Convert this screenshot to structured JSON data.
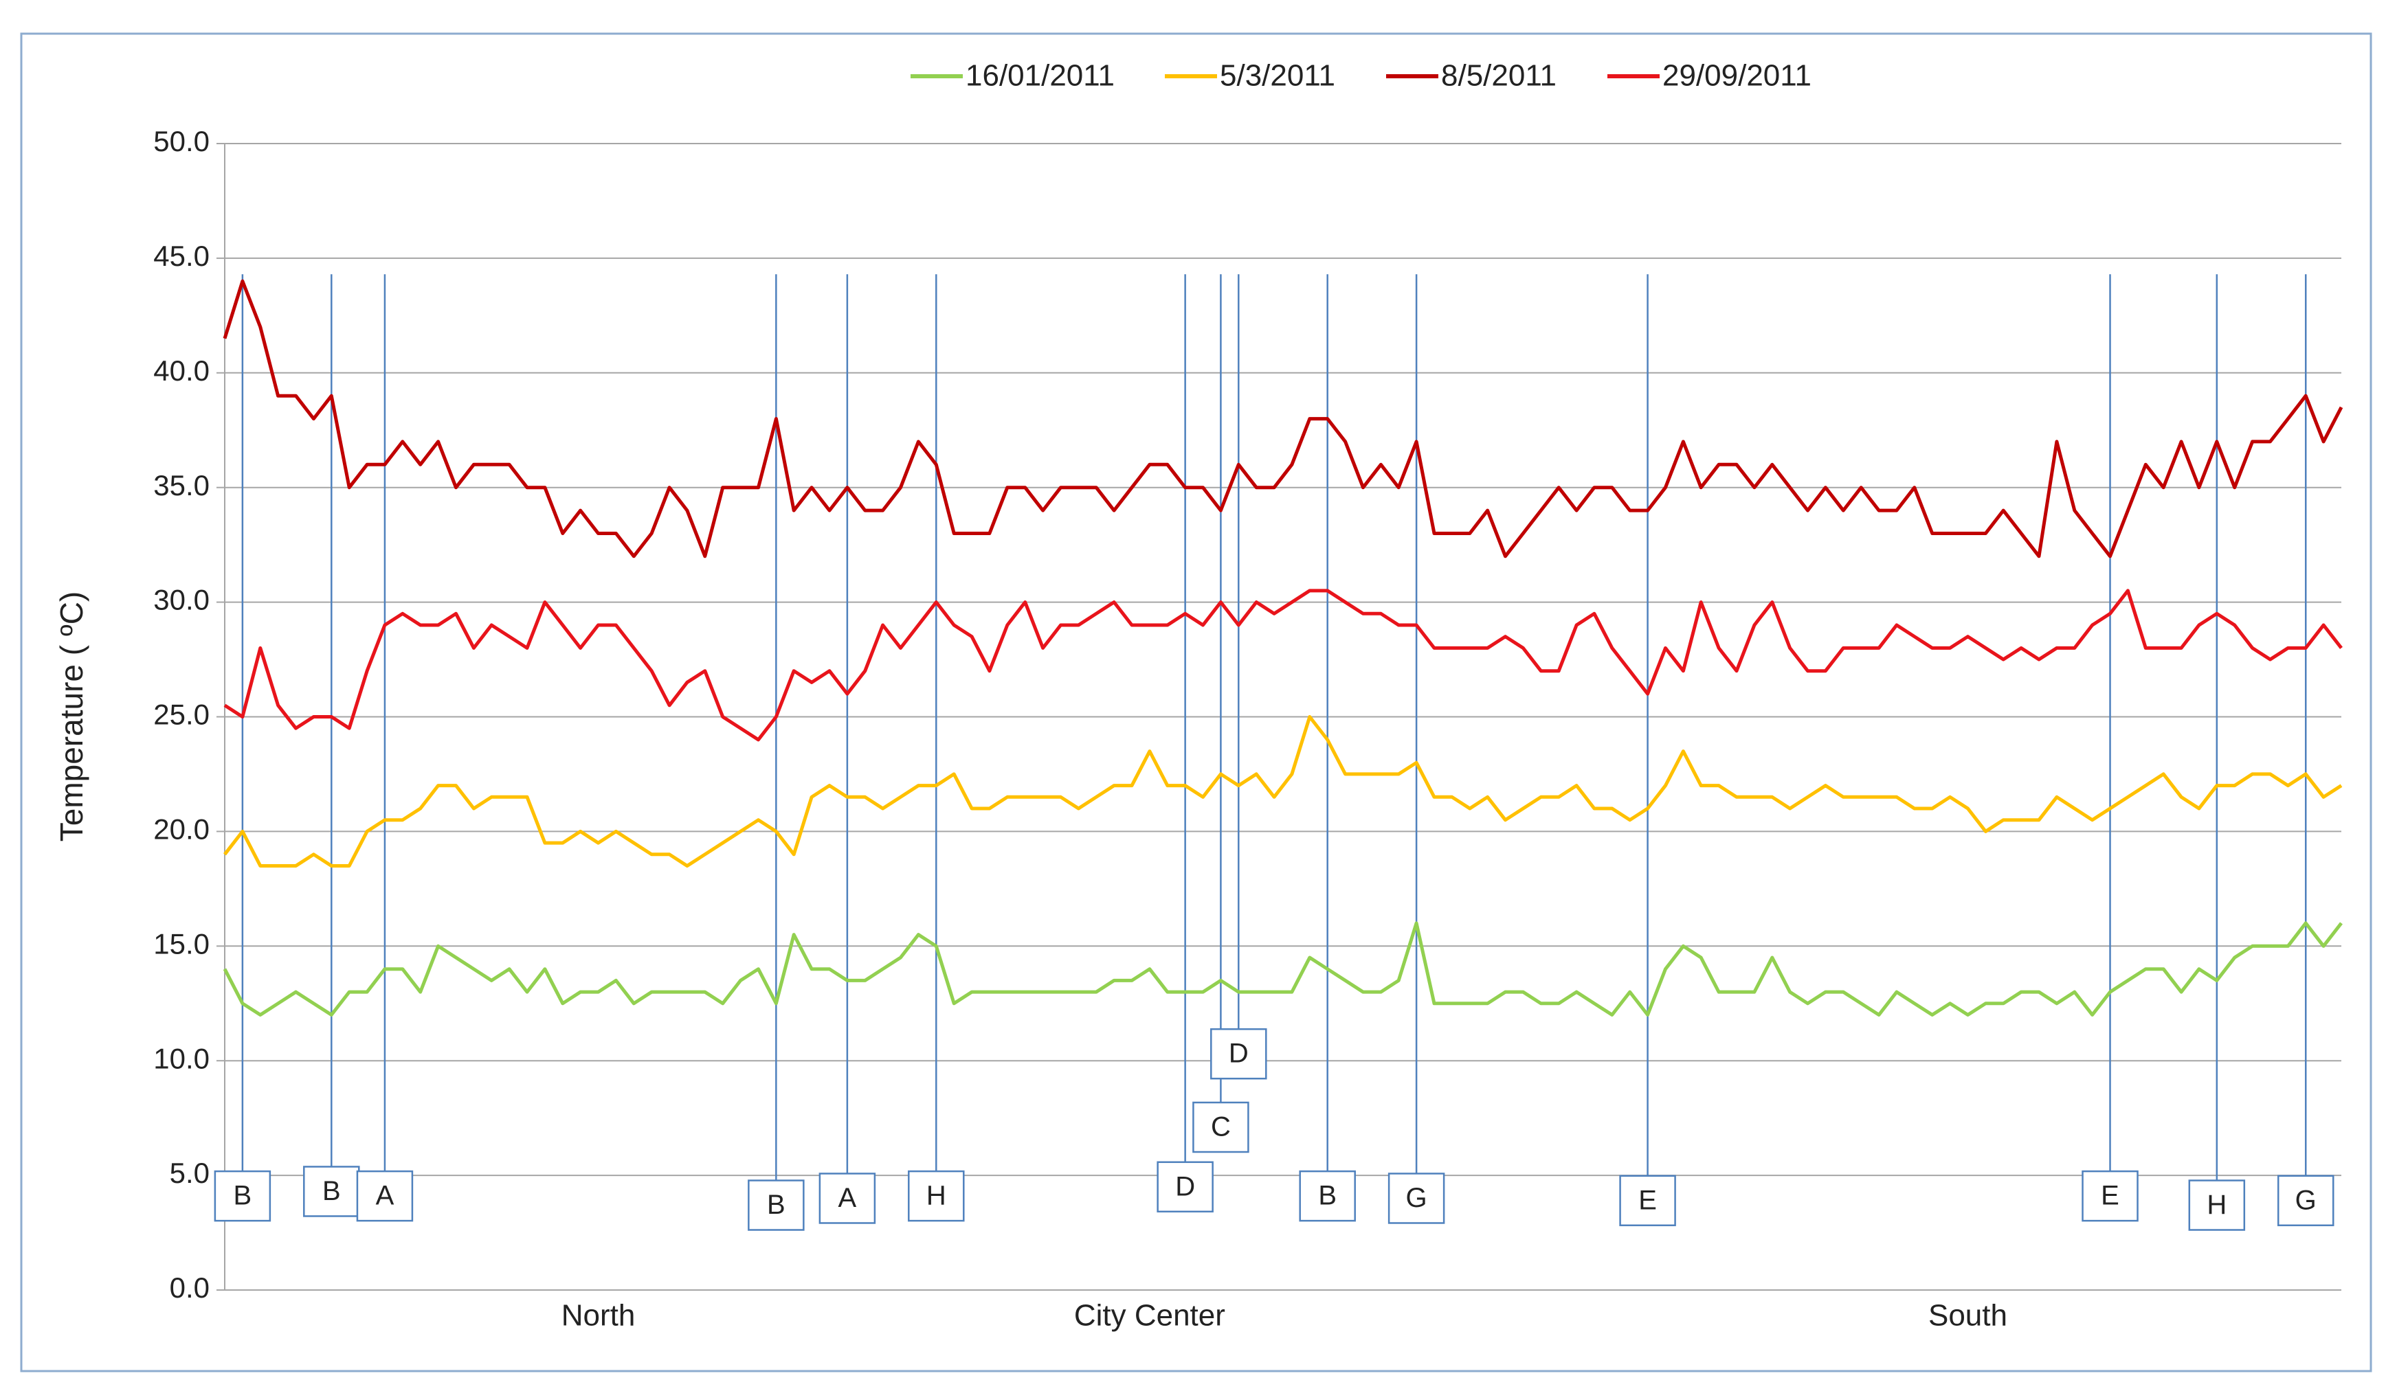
{
  "chart_data": {
    "type": "line",
    "y_label": "Temperature ( ºC)",
    "categories": [
      null,
      null,
      null,
      null,
      null,
      null,
      null,
      null,
      null,
      null,
      null,
      null,
      null,
      null,
      null,
      null,
      null,
      null,
      null,
      null,
      null,
      "North",
      null,
      null,
      null,
      null,
      null,
      null,
      null,
      null,
      null,
      null,
      null,
      null,
      null,
      null,
      null,
      null,
      null,
      null,
      null,
      null,
      null,
      null,
      null,
      null,
      null,
      null,
      null,
      null,
      null,
      null,
      "City Center",
      null,
      null,
      null,
      null,
      null,
      null,
      null,
      null,
      null,
      null,
      null,
      null,
      null,
      null,
      null,
      null,
      null,
      null,
      null,
      null,
      null,
      null,
      null,
      null,
      null,
      null,
      null,
      null,
      null,
      null,
      null,
      null,
      null,
      null,
      null,
      null,
      null,
      null,
      null,
      null,
      null,
      null,
      null,
      null,
      null,
      "South",
      null,
      null,
      null,
      null,
      null,
      null,
      null,
      null,
      null,
      null,
      null,
      null,
      null,
      null,
      null,
      null,
      null,
      null,
      null,
      null,
      null
    ],
    "ylim": [
      0,
      50
    ],
    "yticks": [
      {
        "value": 0,
        "label": "0.0"
      },
      {
        "value": 5,
        "label": "5.0"
      },
      {
        "value": 10,
        "label": "10.0"
      },
      {
        "value": 15,
        "label": "15.0"
      },
      {
        "value": 20,
        "label": "20.0"
      },
      {
        "value": 25,
        "label": "25.0"
      },
      {
        "value": 30,
        "label": "30.0"
      },
      {
        "value": 35,
        "label": "35.0"
      },
      {
        "value": 40,
        "label": "40.0"
      },
      {
        "value": 45,
        "label": "45.0"
      },
      {
        "value": 50,
        "label": "50.0"
      }
    ],
    "grid": true,
    "legend": "top",
    "series": [
      {
        "name": "16/01/2011",
        "color": "#92d050",
        "values": [
          14,
          12.5,
          12,
          12.5,
          13,
          12.5,
          12,
          13,
          13,
          14,
          14,
          13,
          15,
          14.5,
          14,
          13.5,
          14,
          13,
          14,
          12.5,
          13,
          13,
          13.5,
          12.5,
          13,
          13,
          13,
          13,
          12.5,
          13.5,
          14,
          12.5,
          15.5,
          14,
          14,
          13.5,
          13.5,
          14,
          14.5,
          15.5,
          15,
          12.5,
          13,
          13,
          13,
          13,
          13,
          13,
          13,
          13,
          13.5,
          13.5,
          14,
          13,
          13,
          13,
          13.5,
          13,
          13,
          13,
          13,
          14.5,
          14,
          13.5,
          13,
          13,
          13.5,
          16,
          12.5,
          12.5,
          12.5,
          12.5,
          13,
          13,
          12.5,
          12.5,
          13,
          12.5,
          12,
          13,
          12,
          14,
          15,
          14.5,
          13,
          13,
          13,
          14.5,
          13,
          12.5,
          13,
          13,
          12.5,
          12,
          13,
          12.5,
          12,
          12.5,
          12,
          12.5,
          12.5,
          13,
          13,
          12.5,
          13,
          12,
          13,
          13.5,
          14,
          14,
          13,
          14,
          13.5,
          14.5,
          15,
          15,
          15,
          16,
          15,
          16
        ]
      },
      {
        "name": "5/3/2011",
        "color": "#ffc000",
        "values": [
          19,
          20,
          18.5,
          18.5,
          18.5,
          19,
          18.5,
          18.5,
          20,
          20.5,
          20.5,
          21,
          22,
          22,
          21,
          21.5,
          21.5,
          21.5,
          19.5,
          19.5,
          20,
          19.5,
          20,
          19.5,
          19,
          19,
          18.5,
          19,
          19.5,
          20,
          20.5,
          20,
          19,
          21.5,
          22,
          21.5,
          21.5,
          21,
          21.5,
          22,
          22,
          22.5,
          21,
          21,
          21.5,
          21.5,
          21.5,
          21.5,
          21,
          21.5,
          22,
          22,
          23.5,
          22,
          22,
          21.5,
          22.5,
          22,
          22.5,
          21.5,
          22.5,
          25,
          24,
          22.5,
          22.5,
          22.5,
          22.5,
          23,
          21.5,
          21.5,
          21,
          21.5,
          20.5,
          21,
          21.5,
          21.5,
          22,
          21,
          21,
          20.5,
          21,
          22,
          23.5,
          22,
          22,
          21.5,
          21.5,
          21.5,
          21,
          21.5,
          22,
          21.5,
          21.5,
          21.5,
          21.5,
          21,
          21,
          21.5,
          21,
          20,
          20.5,
          20.5,
          20.5,
          21.5,
          21,
          20.5,
          21,
          21.5,
          22,
          22.5,
          21.5,
          21,
          22,
          22,
          22.5,
          22.5,
          22,
          22.5,
          21.5,
          22
        ]
      },
      {
        "name": "8/5/2011",
        "color": "#c00000",
        "values": [
          41.5,
          44,
          42,
          39,
          39,
          38,
          39,
          35,
          36,
          36,
          37,
          36,
          37,
          35,
          36,
          36,
          36,
          35,
          35,
          33,
          34,
          33,
          33,
          32,
          33,
          35,
          34,
          32,
          35,
          35,
          35,
          38,
          34,
          35,
          34,
          35,
          34,
          34,
          35,
          37,
          36,
          33,
          33,
          33,
          35,
          35,
          34,
          35,
          35,
          35,
          34,
          35,
          36,
          36,
          35,
          35,
          34,
          36,
          35,
          35,
          36,
          38,
          38,
          37,
          35,
          36,
          35,
          37,
          33,
          33,
          33,
          34,
          32,
          33,
          34,
          35,
          34,
          35,
          35,
          34,
          34,
          35,
          37,
          35,
          36,
          36,
          35,
          36,
          35,
          34,
          35,
          34,
          35,
          34,
          34,
          35,
          33,
          33,
          33,
          33,
          34,
          33,
          32,
          37,
          34,
          33,
          32,
          34,
          36,
          35,
          37,
          35,
          37,
          35,
          37,
          37,
          38,
          39,
          37,
          38.5
        ]
      },
      {
        "name": "29/09/2011",
        "color": "#e8141b",
        "values": [
          25.5,
          25,
          28,
          25.5,
          24.5,
          25,
          25,
          24.5,
          27,
          29,
          29.5,
          29,
          29,
          29.5,
          28,
          29,
          28.5,
          28,
          30,
          29,
          28,
          29,
          29,
          28,
          27,
          25.5,
          26.5,
          27,
          25,
          24.5,
          24,
          25,
          27,
          26.5,
          27,
          26,
          27,
          29,
          28,
          29,
          30,
          29,
          28.5,
          27,
          29,
          30,
          28,
          29,
          29,
          29.5,
          30,
          29,
          29,
          29,
          29.5,
          29,
          30,
          29,
          30,
          29.5,
          30,
          30.5,
          30.5,
          30,
          29.5,
          29.5,
          29,
          29,
          28,
          28,
          28,
          28,
          28.5,
          28,
          27,
          27,
          29,
          29.5,
          28,
          27,
          26,
          28,
          27,
          30,
          28,
          27,
          29,
          30,
          28,
          27,
          27,
          28,
          28,
          28,
          29,
          28.5,
          28,
          28,
          28.5,
          28,
          27.5,
          28,
          27.5,
          28,
          28,
          29,
          29.5,
          30.5,
          28,
          28,
          28,
          29,
          29.5,
          29,
          28,
          27.5,
          28,
          28,
          29,
          28
        ]
      }
    ],
    "annotations": [
      {
        "text": "B",
        "x": 1,
        "y": 4.1
      },
      {
        "text": "B",
        "x": 6,
        "y": 4.3
      },
      {
        "text": "A",
        "x": 9,
        "y": 4.1
      },
      {
        "text": "B",
        "x": 31,
        "y": 3.7
      },
      {
        "text": "A",
        "x": 35,
        "y": 4.0
      },
      {
        "text": "H",
        "x": 40,
        "y": 4.1
      },
      {
        "text": "D",
        "x": 54,
        "y": 4.5
      },
      {
        "text": "C",
        "x": 56,
        "y": 7.1
      },
      {
        "text": "D",
        "x": 57,
        "y": 10.3
      },
      {
        "text": "B",
        "x": 62,
        "y": 4.1
      },
      {
        "text": "G",
        "x": 67,
        "y": 4.0
      },
      {
        "text": "E",
        "x": 80,
        "y": 3.9
      },
      {
        "text": "E",
        "x": 106,
        "y": 4.1
      },
      {
        "text": "H",
        "x": 112,
        "y": 3.7
      },
      {
        "text": "G",
        "x": 117,
        "y": 3.9
      }
    ]
  }
}
